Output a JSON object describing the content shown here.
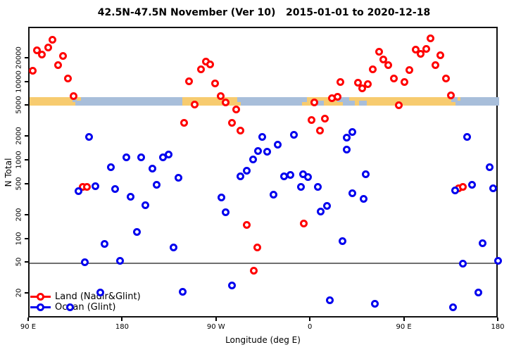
{
  "chart_data": {
    "type": "scatter",
    "title": "42.5N-47.5N November (Ver 10)   2015-01-01 to 2020-12-18",
    "xlabel": "Longitude (deg E)",
    "ylabel": "N Total",
    "x_axis": {
      "min": 90,
      "max": 540,
      "ticks": [
        {
          "value": 90,
          "label": "90 E"
        },
        {
          "value": 180,
          "label": "180"
        },
        {
          "value": 270,
          "label": "90 W"
        },
        {
          "value": 360,
          "label": "0"
        },
        {
          "value": 450,
          "label": "90 E"
        },
        {
          "value": 540,
          "label": "180"
        }
      ]
    },
    "y_axis": {
      "log": true,
      "min": 9.8,
      "max": 49600,
      "ticks": [
        {
          "value": 20,
          "label": "20"
        },
        {
          "value": 50,
          "label": "50"
        },
        {
          "value": 100,
          "label": "100"
        },
        {
          "value": 200,
          "label": "200"
        },
        {
          "value": 500,
          "label": "500"
        },
        {
          "value": 1000,
          "label": "1000"
        },
        {
          "value": 2000,
          "label": "2000"
        },
        {
          "value": 5000,
          "label": "5000"
        },
        {
          "value": 10000,
          "label": "10000"
        },
        {
          "value": 20000,
          "label": "20000"
        }
      ]
    },
    "reference_line": {
      "y": 50,
      "color": "#6f6f6f"
    },
    "map_strip": {
      "description": "land/ocean longitude strip for 42.5N-47.5N",
      "value_range": [
        5150,
        6520
      ],
      "land_color": "#f7cb6f",
      "ocean_color": "#a8beda",
      "base": "land",
      "ocean_segments": [
        {
          "from": 131,
          "to": 135,
          "part": "top"
        },
        {
          "from": 134,
          "to": 139,
          "part": "bottom"
        },
        {
          "from": 139,
          "to": 236.5,
          "part": "full"
        },
        {
          "from": 289,
          "to": 292.5,
          "part": "top"
        },
        {
          "from": 292.5,
          "to": 351,
          "part": "full"
        },
        {
          "from": 351,
          "to": 355.5,
          "part": "top"
        },
        {
          "from": 365.5,
          "to": 372,
          "part": "bottom"
        },
        {
          "from": 385,
          "to": 396,
          "part": "top"
        },
        {
          "from": 390,
          "to": 402,
          "part": "bottom"
        },
        {
          "from": 406,
          "to": 413,
          "part": "bottom"
        },
        {
          "from": 494,
          "to": 500,
          "part": "top"
        },
        {
          "from": 498,
          "to": 504,
          "part": "bottom"
        },
        {
          "from": 503,
          "to": 540,
          "part": "full"
        }
      ]
    },
    "legend": {
      "items": [
        {
          "label": "Land (Nadir&Glint)",
          "color": "#ff0000"
        },
        {
          "label": "Ocean (Glint)",
          "color": "#0000ee"
        }
      ]
    },
    "series": [
      {
        "name": "Land (Nadir&Glint)",
        "color": "#ff0000",
        "points": [
          [
            93,
            14300
          ],
          [
            97,
            25800
          ],
          [
            102,
            23000
          ],
          [
            108,
            28200
          ],
          [
            112,
            35600
          ],
          [
            117,
            16700
          ],
          [
            122,
            22000
          ],
          [
            127,
            11400
          ],
          [
            132,
            6800
          ],
          [
            141,
            472
          ],
          [
            145,
            468
          ],
          [
            238,
            3070
          ],
          [
            243,
            10500
          ],
          [
            248,
            5300
          ],
          [
            254,
            14900
          ],
          [
            259,
            18500
          ],
          [
            263,
            17000
          ],
          [
            268,
            9840
          ],
          [
            273,
            6730
          ],
          [
            278,
            5660
          ],
          [
            284,
            3080
          ],
          [
            288,
            4540
          ],
          [
            292,
            2480
          ],
          [
            298,
            155
          ],
          [
            305,
            40.5
          ],
          [
            308,
            80.5
          ],
          [
            353,
            162
          ],
          [
            360,
            3380
          ],
          [
            363,
            5660
          ],
          [
            368,
            2480
          ],
          [
            373,
            3500
          ],
          [
            380,
            6400
          ],
          [
            385,
            6570
          ],
          [
            388,
            10300
          ],
          [
            405,
            10000
          ],
          [
            409,
            8570
          ],
          [
            414,
            9650
          ],
          [
            419,
            14900
          ],
          [
            425,
            24900
          ],
          [
            429,
            19900
          ],
          [
            434,
            16700
          ],
          [
            439,
            11400
          ],
          [
            444,
            5220
          ],
          [
            449,
            10300
          ],
          [
            454,
            14600
          ],
          [
            460,
            26300
          ],
          [
            465,
            23500
          ],
          [
            470,
            27100
          ],
          [
            474,
            36400
          ],
          [
            479,
            16900
          ],
          [
            484,
            22500
          ],
          [
            489,
            11400
          ],
          [
            494,
            6870
          ],
          [
            501,
            452
          ],
          [
            505,
            475
          ]
        ]
      },
      {
        "name": "Ocean (Glint)",
        "color": "#0000ee",
        "points": [
          [
            129,
            13.9
          ],
          [
            137,
            420
          ],
          [
            143,
            51.5
          ],
          [
            147,
            2020
          ],
          [
            153,
            481
          ],
          [
            158,
            21.3
          ],
          [
            162,
            87.5
          ],
          [
            168,
            836
          ],
          [
            172,
            446
          ],
          [
            177,
            54
          ],
          [
            183,
            1130
          ],
          [
            187,
            354
          ],
          [
            193,
            126
          ],
          [
            197,
            1130
          ],
          [
            201,
            276
          ],
          [
            208,
            813
          ],
          [
            212,
            506
          ],
          [
            218,
            1130
          ],
          [
            223,
            1230
          ],
          [
            228,
            80
          ],
          [
            233,
            610
          ],
          [
            237,
            21.5
          ],
          [
            274,
            342
          ],
          [
            278,
            222
          ],
          [
            284,
            26
          ],
          [
            292,
            648
          ],
          [
            298,
            760
          ],
          [
            304,
            1050
          ],
          [
            309,
            1340
          ],
          [
            313,
            2050
          ],
          [
            318,
            1310
          ],
          [
            324,
            377
          ],
          [
            328,
            1620
          ],
          [
            334,
            637
          ],
          [
            340,
            664
          ],
          [
            343,
            2160
          ],
          [
            350,
            472
          ],
          [
            352,
            690
          ],
          [
            357,
            625
          ],
          [
            366,
            467
          ],
          [
            369,
            230
          ],
          [
            375,
            268
          ],
          [
            378,
            16.8
          ],
          [
            390,
            96
          ],
          [
            394,
            1990
          ],
          [
            394,
            1400
          ],
          [
            399,
            2350
          ],
          [
            399,
            389
          ],
          [
            410,
            330
          ],
          [
            412,
            680
          ],
          [
            421,
            15.4
          ],
          [
            496,
            13.9
          ],
          [
            498,
            428
          ],
          [
            505,
            50
          ],
          [
            509,
            2060
          ],
          [
            514,
            497
          ],
          [
            520,
            21.3
          ],
          [
            524,
            89.5
          ],
          [
            531,
            840
          ],
          [
            534,
            455
          ],
          [
            539,
            54
          ]
        ]
      }
    ]
  }
}
